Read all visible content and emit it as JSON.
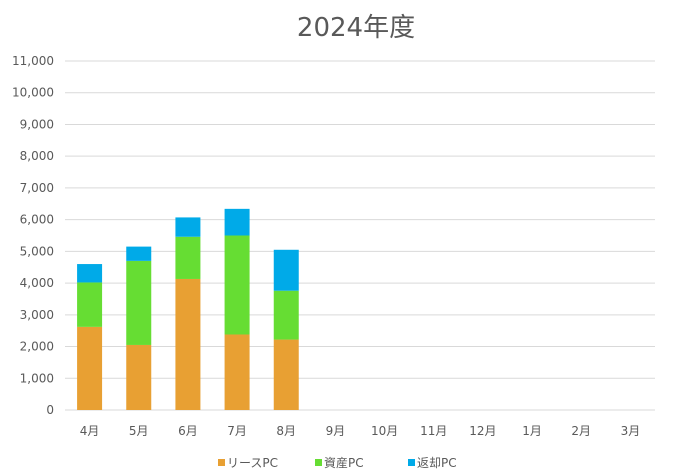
{
  "chart_data": {
    "type": "bar",
    "stacked": true,
    "title": "2024年度",
    "xlabel": "",
    "ylabel": "",
    "categories": [
      "4月",
      "5月",
      "6月",
      "7月",
      "8月",
      "9月",
      "10月",
      "11月",
      "12月",
      "1月",
      "2月",
      "3月"
    ],
    "ylim": [
      0,
      11000
    ],
    "yticks": [
      "0",
      "1,000",
      "2,000",
      "3,000",
      "4,000",
      "5,000",
      "6,000",
      "7,000",
      "8,000",
      "9,000",
      "10,000",
      "11,000"
    ],
    "grid": true,
    "legend_position": "bottom",
    "series": [
      {
        "name": "リースPC",
        "color": "#E8A033",
        "values": [
          2620,
          2050,
          4130,
          2380,
          2220,
          0,
          0,
          0,
          0,
          0,
          0,
          0
        ]
      },
      {
        "name": "資産PC",
        "color": "#66DD33",
        "values": [
          1400,
          2650,
          1330,
          3120,
          1540,
          0,
          0,
          0,
          0,
          0,
          0,
          0
        ]
      },
      {
        "name": "返却PC",
        "color": "#00AAE8",
        "values": [
          580,
          450,
          610,
          840,
          1290,
          0,
          0,
          0,
          0,
          0,
          0,
          0
        ]
      }
    ]
  }
}
